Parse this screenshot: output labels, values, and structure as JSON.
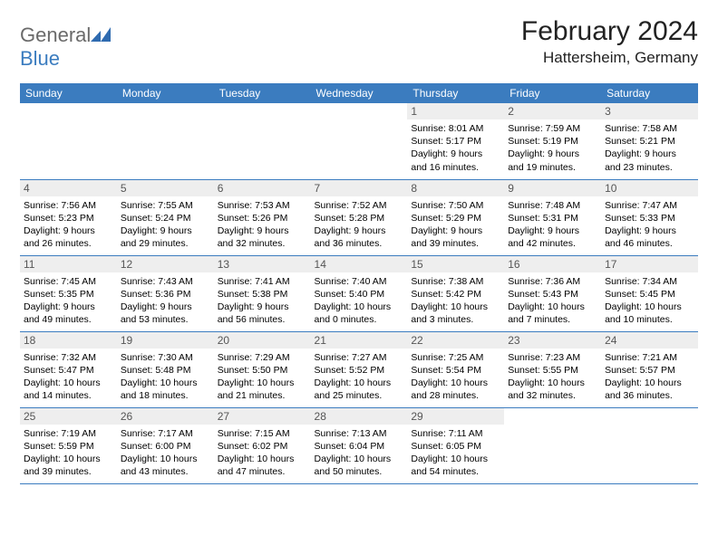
{
  "branding": {
    "logo_text_1": "General",
    "logo_text_2": "Blue",
    "logo_mark_color": "#2f6bb0"
  },
  "header": {
    "month_title": "February 2024",
    "location": "Hattersheim, Germany"
  },
  "theme": {
    "header_row_bg": "#3b7cbf",
    "header_row_fg": "#ffffff",
    "daynum_bg": "#eeeeee",
    "cell_border": "#3b7cbf",
    "month_title_fontsize": 30,
    "location_fontsize": 17,
    "dayheader_fontsize": 12,
    "body_fontsize": 10.5
  },
  "day_headers": [
    "Sunday",
    "Monday",
    "Tuesday",
    "Wednesday",
    "Thursday",
    "Friday",
    "Saturday"
  ],
  "weeks": [
    [
      null,
      null,
      null,
      null,
      {
        "n": "1",
        "sr": "Sunrise: 8:01 AM",
        "ss": "Sunset: 5:17 PM",
        "dl": "Daylight: 9 hours and 16 minutes."
      },
      {
        "n": "2",
        "sr": "Sunrise: 7:59 AM",
        "ss": "Sunset: 5:19 PM",
        "dl": "Daylight: 9 hours and 19 minutes."
      },
      {
        "n": "3",
        "sr": "Sunrise: 7:58 AM",
        "ss": "Sunset: 5:21 PM",
        "dl": "Daylight: 9 hours and 23 minutes."
      }
    ],
    [
      {
        "n": "4",
        "sr": "Sunrise: 7:56 AM",
        "ss": "Sunset: 5:23 PM",
        "dl": "Daylight: 9 hours and 26 minutes."
      },
      {
        "n": "5",
        "sr": "Sunrise: 7:55 AM",
        "ss": "Sunset: 5:24 PM",
        "dl": "Daylight: 9 hours and 29 minutes."
      },
      {
        "n": "6",
        "sr": "Sunrise: 7:53 AM",
        "ss": "Sunset: 5:26 PM",
        "dl": "Daylight: 9 hours and 32 minutes."
      },
      {
        "n": "7",
        "sr": "Sunrise: 7:52 AM",
        "ss": "Sunset: 5:28 PM",
        "dl": "Daylight: 9 hours and 36 minutes."
      },
      {
        "n": "8",
        "sr": "Sunrise: 7:50 AM",
        "ss": "Sunset: 5:29 PM",
        "dl": "Daylight: 9 hours and 39 minutes."
      },
      {
        "n": "9",
        "sr": "Sunrise: 7:48 AM",
        "ss": "Sunset: 5:31 PM",
        "dl": "Daylight: 9 hours and 42 minutes."
      },
      {
        "n": "10",
        "sr": "Sunrise: 7:47 AM",
        "ss": "Sunset: 5:33 PM",
        "dl": "Daylight: 9 hours and 46 minutes."
      }
    ],
    [
      {
        "n": "11",
        "sr": "Sunrise: 7:45 AM",
        "ss": "Sunset: 5:35 PM",
        "dl": "Daylight: 9 hours and 49 minutes."
      },
      {
        "n": "12",
        "sr": "Sunrise: 7:43 AM",
        "ss": "Sunset: 5:36 PM",
        "dl": "Daylight: 9 hours and 53 minutes."
      },
      {
        "n": "13",
        "sr": "Sunrise: 7:41 AM",
        "ss": "Sunset: 5:38 PM",
        "dl": "Daylight: 9 hours and 56 minutes."
      },
      {
        "n": "14",
        "sr": "Sunrise: 7:40 AM",
        "ss": "Sunset: 5:40 PM",
        "dl": "Daylight: 10 hours and 0 minutes."
      },
      {
        "n": "15",
        "sr": "Sunrise: 7:38 AM",
        "ss": "Sunset: 5:42 PM",
        "dl": "Daylight: 10 hours and 3 minutes."
      },
      {
        "n": "16",
        "sr": "Sunrise: 7:36 AM",
        "ss": "Sunset: 5:43 PM",
        "dl": "Daylight: 10 hours and 7 minutes."
      },
      {
        "n": "17",
        "sr": "Sunrise: 7:34 AM",
        "ss": "Sunset: 5:45 PM",
        "dl": "Daylight: 10 hours and 10 minutes."
      }
    ],
    [
      {
        "n": "18",
        "sr": "Sunrise: 7:32 AM",
        "ss": "Sunset: 5:47 PM",
        "dl": "Daylight: 10 hours and 14 minutes."
      },
      {
        "n": "19",
        "sr": "Sunrise: 7:30 AM",
        "ss": "Sunset: 5:48 PM",
        "dl": "Daylight: 10 hours and 18 minutes."
      },
      {
        "n": "20",
        "sr": "Sunrise: 7:29 AM",
        "ss": "Sunset: 5:50 PM",
        "dl": "Daylight: 10 hours and 21 minutes."
      },
      {
        "n": "21",
        "sr": "Sunrise: 7:27 AM",
        "ss": "Sunset: 5:52 PM",
        "dl": "Daylight: 10 hours and 25 minutes."
      },
      {
        "n": "22",
        "sr": "Sunrise: 7:25 AM",
        "ss": "Sunset: 5:54 PM",
        "dl": "Daylight: 10 hours and 28 minutes."
      },
      {
        "n": "23",
        "sr": "Sunrise: 7:23 AM",
        "ss": "Sunset: 5:55 PM",
        "dl": "Daylight: 10 hours and 32 minutes."
      },
      {
        "n": "24",
        "sr": "Sunrise: 7:21 AM",
        "ss": "Sunset: 5:57 PM",
        "dl": "Daylight: 10 hours and 36 minutes."
      }
    ],
    [
      {
        "n": "25",
        "sr": "Sunrise: 7:19 AM",
        "ss": "Sunset: 5:59 PM",
        "dl": "Daylight: 10 hours and 39 minutes."
      },
      {
        "n": "26",
        "sr": "Sunrise: 7:17 AM",
        "ss": "Sunset: 6:00 PM",
        "dl": "Daylight: 10 hours and 43 minutes."
      },
      {
        "n": "27",
        "sr": "Sunrise: 7:15 AM",
        "ss": "Sunset: 6:02 PM",
        "dl": "Daylight: 10 hours and 47 minutes."
      },
      {
        "n": "28",
        "sr": "Sunrise: 7:13 AM",
        "ss": "Sunset: 6:04 PM",
        "dl": "Daylight: 10 hours and 50 minutes."
      },
      {
        "n": "29",
        "sr": "Sunrise: 7:11 AM",
        "ss": "Sunset: 6:05 PM",
        "dl": "Daylight: 10 hours and 54 minutes."
      },
      null,
      null
    ]
  ]
}
